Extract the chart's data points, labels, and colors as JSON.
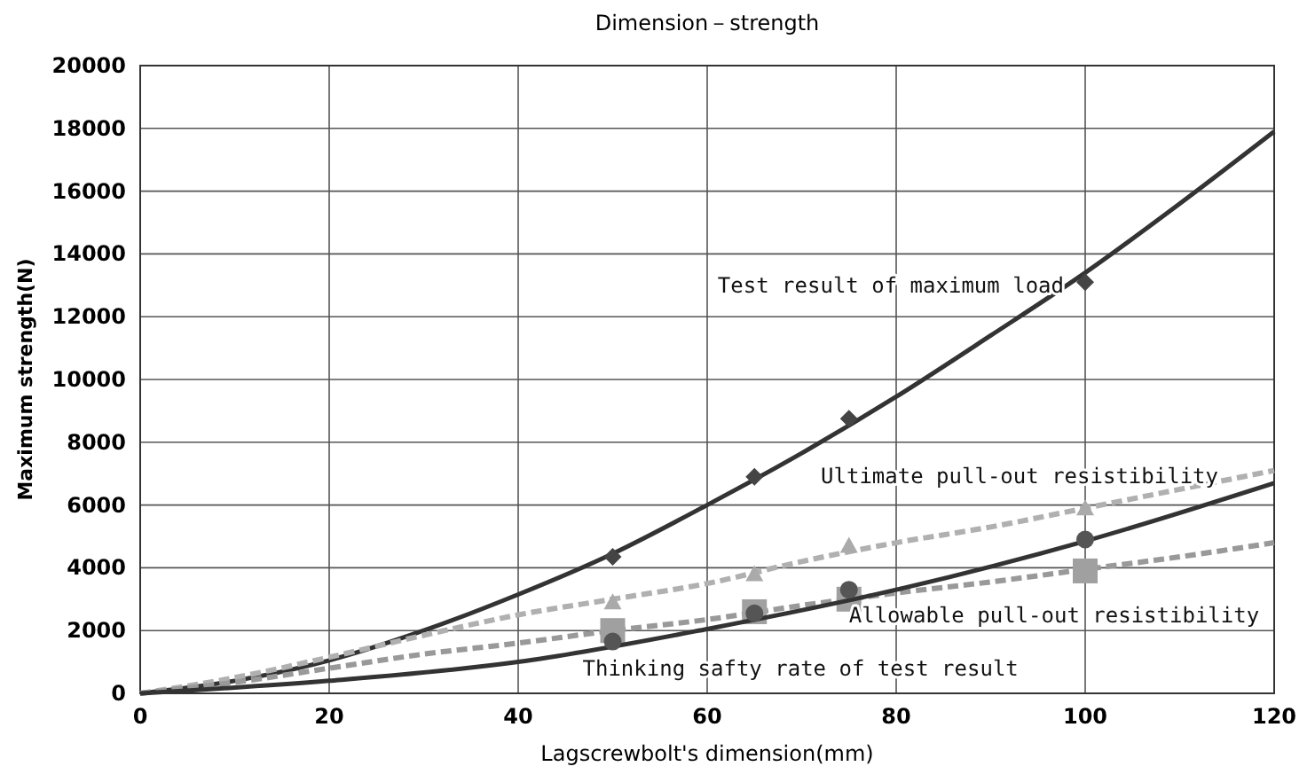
{
  "chart_data": {
    "type": "scatter",
    "title": "Dimension－strength",
    "xlabel": "Lagscrewbolt's dimension(mm)",
    "ylabel": "Maximum strength(N)",
    "xlim": [
      0,
      120
    ],
    "xticks": [
      0,
      20,
      40,
      60,
      80,
      100,
      120
    ],
    "ylim": [
      0,
      20000
    ],
    "yticks": [
      0,
      2000,
      4000,
      6000,
      8000,
      10000,
      12000,
      14000,
      16000,
      18000,
      20000
    ],
    "grid": true,
    "series": [
      {
        "type": "line",
        "color": "#333333",
        "line_style": "solid",
        "marker": "none",
        "x": [
          0,
          10,
          20,
          30,
          40,
          50,
          60,
          70,
          80,
          90,
          100,
          110,
          120
        ],
        "values": [
          0,
          400,
          1050,
          2000,
          3150,
          4450,
          6000,
          7650,
          9450,
          11400,
          13400,
          15600,
          17900
        ]
      },
      {
        "name": "Test result of maximum load",
        "color": "#444444",
        "marker": "diamond",
        "x": [
          50,
          65,
          75,
          100
        ],
        "values": [
          4350,
          6900,
          8750,
          13100
        ]
      },
      {
        "type": "line",
        "color": "#b0b0b0",
        "line_style": "dashed",
        "marker": "none",
        "x": [
          0,
          10,
          20,
          30,
          40,
          50,
          60,
          70,
          80,
          90,
          100,
          110,
          120
        ],
        "values": [
          0,
          500,
          1150,
          1850,
          2500,
          3000,
          3500,
          4200,
          4800,
          5300,
          5900,
          6500,
          7100
        ]
      },
      {
        "name": "Ultimate pull-out resistibility",
        "color": "#aaaaaa",
        "marker": "triangle",
        "x": [
          50,
          65,
          75,
          100
        ],
        "values": [
          2900,
          3800,
          4700,
          5900
        ]
      },
      {
        "type": "line",
        "color": "#999999",
        "line_style": "dashed",
        "marker": "none",
        "x": [
          0,
          10,
          20,
          30,
          40,
          50,
          60,
          70,
          80,
          90,
          100,
          110,
          120
        ],
        "values": [
          0,
          350,
          800,
          1250,
          1600,
          2000,
          2350,
          2800,
          3200,
          3550,
          3950,
          4350,
          4800
        ]
      },
      {
        "name": "Allowable pull-out resistibility",
        "color": "#a0a0a0",
        "marker": "square",
        "x": [
          50,
          65,
          75,
          100
        ],
        "values": [
          2000,
          2600,
          3000,
          3900
        ]
      },
      {
        "type": "line",
        "color": "#333333",
        "line_style": "solid",
        "marker": "none",
        "x": [
          0,
          20,
          40,
          60,
          80,
          100,
          120
        ],
        "values": [
          0,
          400,
          1000,
          2050,
          3300,
          4850,
          6700
        ]
      },
      {
        "name": "Thinking safty rate of test result",
        "color": "#555555",
        "marker": "circle",
        "x": [
          50,
          65,
          75,
          100
        ],
        "values": [
          1650,
          2550,
          3300,
          4900
        ]
      }
    ]
  }
}
